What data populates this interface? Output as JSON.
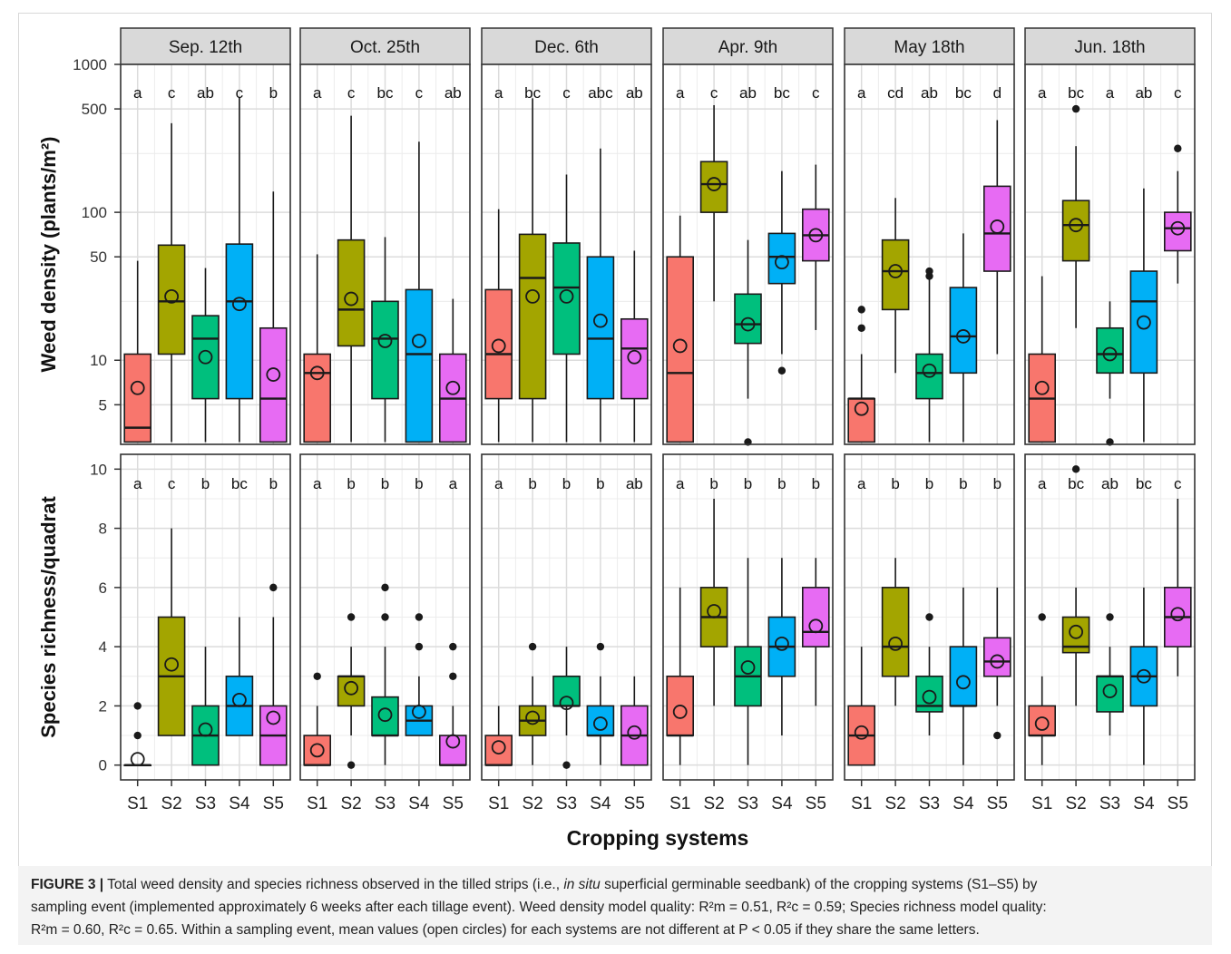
{
  "chart_data": {
    "type": "box",
    "xlabel": "Cropping systems",
    "systems": [
      "S1",
      "S2",
      "S3",
      "S4",
      "S5"
    ],
    "system_colors": [
      "#f8766d",
      "#a3a500",
      "#00bf7d",
      "#00b0f6",
      "#e76bf3"
    ],
    "events": [
      "Sep. 12th",
      "Oct. 25th",
      "Dec. 6th",
      "Apr. 9th",
      "May 18th",
      "Jun. 18th"
    ],
    "panels": [
      {
        "id": "density",
        "ylabel": "Weed density (plants/m²)",
        "scale": "log",
        "ylim": [
          2.7,
          1000
        ],
        "ticks": [
          5,
          10,
          50,
          100,
          500,
          1000
        ],
        "tick_labels": [
          "5",
          "10",
          "50",
          "100",
          "500",
          "1000"
        ],
        "minor_ticks": [
          25,
          250
        ],
        "facets": [
          {
            "letters": [
              "a",
              "c",
              "ab",
              "c",
              "b"
            ],
            "boxes": [
              {
                "lo": 2.8,
                "q1": 2.8,
                "med": 3.5,
                "q3": 11,
                "hi": 47,
                "mean": 6.5,
                "out": []
              },
              {
                "lo": 2.8,
                "q1": 11,
                "med": 25,
                "q3": 60,
                "hi": 400,
                "mean": 27,
                "out": []
              },
              {
                "lo": 2.8,
                "q1": 5.5,
                "med": 14,
                "q3": 20,
                "hi": 42,
                "mean": 10.5,
                "out": []
              },
              {
                "lo": 2.8,
                "q1": 5.5,
                "med": 25,
                "q3": 61,
                "hi": 600,
                "mean": 24,
                "out": []
              },
              {
                "lo": 2.8,
                "q1": 2.8,
                "med": 5.5,
                "q3": 16.5,
                "hi": 138,
                "mean": 8,
                "out": []
              }
            ]
          },
          {
            "letters": [
              "a",
              "c",
              "bc",
              "c",
              "ab"
            ],
            "boxes": [
              {
                "lo": 2.8,
                "q1": 2.8,
                "med": 8.2,
                "q3": 11,
                "hi": 52,
                "mean": 8.2,
                "out": []
              },
              {
                "lo": 2.8,
                "q1": 12.5,
                "med": 22,
                "q3": 65,
                "hi": 450,
                "mean": 26,
                "out": []
              },
              {
                "lo": 2.8,
                "q1": 5.5,
                "med": 14,
                "q3": 25,
                "hi": 68,
                "mean": 13.5,
                "out": []
              },
              {
                "lo": 2.8,
                "q1": 2.8,
                "med": 11,
                "q3": 30,
                "hi": 300,
                "mean": 13.5,
                "out": []
              },
              {
                "lo": 2.8,
                "q1": 2.8,
                "med": 5.5,
                "q3": 11,
                "hi": 26,
                "mean": 6.5,
                "out": []
              }
            ]
          },
          {
            "letters": [
              "a",
              "bc",
              "c",
              "abc",
              "ab"
            ],
            "boxes": [
              {
                "lo": 2.8,
                "q1": 5.5,
                "med": 11,
                "q3": 30,
                "hi": 105,
                "mean": 12.5,
                "out": []
              },
              {
                "lo": 2.8,
                "q1": 5.5,
                "med": 36,
                "q3": 71,
                "hi": 590,
                "mean": 27,
                "out": []
              },
              {
                "lo": 2.8,
                "q1": 11,
                "med": 31,
                "q3": 62,
                "hi": 180,
                "mean": 27,
                "out": []
              },
              {
                "lo": 2.8,
                "q1": 5.5,
                "med": 14,
                "q3": 50,
                "hi": 270,
                "mean": 18.5,
                "out": []
              },
              {
                "lo": 2.8,
                "q1": 5.5,
                "med": 12,
                "q3": 19,
                "hi": 55,
                "mean": 10.5,
                "out": []
              }
            ]
          },
          {
            "letters": [
              "a",
              "c",
              "ab",
              "bc",
              "c"
            ],
            "boxes": [
              {
                "lo": 2.8,
                "q1": 2.8,
                "med": 8.2,
                "q3": 50,
                "hi": 95,
                "mean": 12.5,
                "out": []
              },
              {
                "lo": 25,
                "q1": 100,
                "med": 155,
                "q3": 220,
                "hi": 530,
                "mean": 155,
                "out": []
              },
              {
                "lo": 5.5,
                "q1": 13,
                "med": 17.5,
                "q3": 28,
                "hi": 65,
                "mean": 17.5,
                "out": [
                  2.8
                ]
              },
              {
                "lo": 11,
                "q1": 33,
                "med": 50,
                "q3": 72,
                "hi": 190,
                "mean": 46,
                "out": [
                  8.5
                ]
              },
              {
                "lo": 16,
                "q1": 47,
                "med": 70,
                "q3": 105,
                "hi": 210,
                "mean": 70,
                "out": []
              }
            ]
          },
          {
            "letters": [
              "a",
              "cd",
              "ab",
              "bc",
              "d"
            ],
            "boxes": [
              {
                "lo": 2.8,
                "q1": 2.8,
                "med": 5.5,
                "q3": 5.5,
                "hi": 11,
                "mean": 4.7,
                "out": [
                  16.5,
                  22
                ]
              },
              {
                "lo": 8.2,
                "q1": 22,
                "med": 40,
                "q3": 65,
                "hi": 125,
                "mean": 40,
                "out": []
              },
              {
                "lo": 2.8,
                "q1": 5.5,
                "med": 8.2,
                "q3": 11,
                "hi": 35,
                "mean": 8.5,
                "out": [
                  37,
                  40
                ]
              },
              {
                "lo": 2.8,
                "q1": 8.2,
                "med": 14.5,
                "q3": 31,
                "hi": 72,
                "mean": 14.5,
                "out": []
              },
              {
                "lo": 11,
                "q1": 40,
                "med": 72,
                "q3": 150,
                "hi": 420,
                "mean": 80,
                "out": []
              }
            ]
          },
          {
            "letters": [
              "a",
              "bc",
              "a",
              "ab",
              "c"
            ],
            "boxes": [
              {
                "lo": 2.8,
                "q1": 2.8,
                "med": 5.5,
                "q3": 11,
                "hi": 37,
                "mean": 6.5,
                "out": []
              },
              {
                "lo": 16.5,
                "q1": 47,
                "med": 82,
                "q3": 120,
                "hi": 280,
                "mean": 82,
                "out": [
                  500
                ]
              },
              {
                "lo": 5.5,
                "q1": 8.2,
                "med": 11,
                "q3": 16.5,
                "hi": 25,
                "mean": 11,
                "out": [
                  2.8
                ]
              },
              {
                "lo": 2.8,
                "q1": 8.2,
                "med": 25,
                "q3": 40,
                "hi": 145,
                "mean": 18,
                "out": []
              },
              {
                "lo": 33,
                "q1": 55,
                "med": 78,
                "q3": 100,
                "hi": 190,
                "mean": 78,
                "out": [
                  270
                ]
              }
            ]
          }
        ]
      },
      {
        "id": "richness",
        "ylabel": "Species richness/quadrat",
        "scale": "linear",
        "ylim": [
          -0.5,
          10.5
        ],
        "ticks": [
          0,
          2,
          4,
          6,
          8,
          10
        ],
        "tick_labels": [
          "0",
          "2",
          "4",
          "6",
          "8",
          "10"
        ],
        "minor_ticks": [
          1,
          3,
          5,
          7,
          9
        ],
        "facets": [
          {
            "letters": [
              "a",
              "c",
              "b",
              "bc",
              "b"
            ],
            "boxes": [
              {
                "lo": 0,
                "q1": 0,
                "med": 0,
                "q3": 0,
                "hi": 0,
                "mean": 0.2,
                "out": [
                  1,
                  2
                ]
              },
              {
                "lo": 1,
                "q1": 1,
                "med": 3,
                "q3": 5,
                "hi": 8,
                "mean": 3.4,
                "out": []
              },
              {
                "lo": 0,
                "q1": 0,
                "med": 1,
                "q3": 2,
                "hi": 4,
                "mean": 1.2,
                "out": []
              },
              {
                "lo": 1,
                "q1": 1,
                "med": 2,
                "q3": 3,
                "hi": 5,
                "mean": 2.2,
                "out": []
              },
              {
                "lo": 0,
                "q1": 0,
                "med": 1,
                "q3": 2,
                "hi": 5,
                "mean": 1.6,
                "out": [
                  6
                ]
              }
            ]
          },
          {
            "letters": [
              "a",
              "b",
              "b",
              "b",
              "a"
            ],
            "boxes": [
              {
                "lo": 0,
                "q1": 0,
                "med": 0,
                "q3": 1,
                "hi": 2,
                "mean": 0.5,
                "out": [
                  3
                ]
              },
              {
                "lo": 1,
                "q1": 2,
                "med": 3,
                "q3": 3,
                "hi": 4,
                "mean": 2.6,
                "out": [
                  0,
                  5
                ]
              },
              {
                "lo": 0,
                "q1": 1,
                "med": 1,
                "q3": 2.3,
                "hi": 4,
                "mean": 1.7,
                "out": [
                  5,
                  6
                ]
              },
              {
                "lo": 1,
                "q1": 1,
                "med": 1.5,
                "q3": 2,
                "hi": 3,
                "mean": 1.8,
                "out": [
                  4,
                  5
                ]
              },
              {
                "lo": 0,
                "q1": 0,
                "med": 0,
                "q3": 1,
                "hi": 2,
                "mean": 0.8,
                "out": [
                  3,
                  4
                ]
              }
            ]
          },
          {
            "letters": [
              "a",
              "b",
              "b",
              "b",
              "ab"
            ],
            "boxes": [
              {
                "lo": 0,
                "q1": 0,
                "med": 0,
                "q3": 1,
                "hi": 2,
                "mean": 0.6,
                "out": []
              },
              {
                "lo": 0,
                "q1": 1,
                "med": 1.5,
                "q3": 2,
                "hi": 3,
                "mean": 1.6,
                "out": [
                  4
                ]
              },
              {
                "lo": 1,
                "q1": 2,
                "med": 2,
                "q3": 3,
                "hi": 4,
                "mean": 2.1,
                "out": [
                  0
                ]
              },
              {
                "lo": 0,
                "q1": 1,
                "med": 1,
                "q3": 2,
                "hi": 3,
                "mean": 1.4,
                "out": [
                  4
                ]
              },
              {
                "lo": 0,
                "q1": 0,
                "med": 1,
                "q3": 2,
                "hi": 3,
                "mean": 1.1,
                "out": []
              }
            ]
          },
          {
            "letters": [
              "a",
              "b",
              "b",
              "b",
              "b"
            ],
            "boxes": [
              {
                "lo": 0,
                "q1": 1,
                "med": 1,
                "q3": 3,
                "hi": 6,
                "mean": 1.8,
                "out": []
              },
              {
                "lo": 2,
                "q1": 4,
                "med": 5,
                "q3": 6,
                "hi": 9,
                "mean": 5.2,
                "out": []
              },
              {
                "lo": 0,
                "q1": 2,
                "med": 3,
                "q3": 4,
                "hi": 7,
                "mean": 3.3,
                "out": []
              },
              {
                "lo": 1,
                "q1": 3,
                "med": 4,
                "q3": 5,
                "hi": 7,
                "mean": 4.1,
                "out": []
              },
              {
                "lo": 2,
                "q1": 4,
                "med": 4.5,
                "q3": 6,
                "hi": 7,
                "mean": 4.7,
                "out": []
              }
            ]
          },
          {
            "letters": [
              "a",
              "b",
              "b",
              "b",
              "b"
            ],
            "boxes": [
              {
                "lo": 0,
                "q1": 0,
                "med": 1,
                "q3": 2,
                "hi": 4,
                "mean": 1.1,
                "out": []
              },
              {
                "lo": 2,
                "q1": 3,
                "med": 4,
                "q3": 6,
                "hi": 7,
                "mean": 4.1,
                "out": []
              },
              {
                "lo": 1,
                "q1": 1.8,
                "med": 2,
                "q3": 3,
                "hi": 4,
                "mean": 2.3,
                "out": [
                  5
                ]
              },
              {
                "lo": 0,
                "q1": 2,
                "med": 2,
                "q3": 4,
                "hi": 6,
                "mean": 2.8,
                "out": []
              },
              {
                "lo": 2,
                "q1": 3,
                "med": 3.5,
                "q3": 4.3,
                "hi": 6,
                "mean": 3.5,
                "out": [
                  1
                ]
              }
            ]
          },
          {
            "letters": [
              "a",
              "bc",
              "ab",
              "bc",
              "c"
            ],
            "boxes": [
              {
                "lo": 0,
                "q1": 1,
                "med": 1,
                "q3": 2,
                "hi": 3,
                "mean": 1.4,
                "out": [
                  5
                ]
              },
              {
                "lo": 2,
                "q1": 3.8,
                "med": 4,
                "q3": 5,
                "hi": 6,
                "mean": 4.5,
                "out": [
                  10
                ]
              },
              {
                "lo": 1,
                "q1": 1.8,
                "med": 3,
                "q3": 3,
                "hi": 4,
                "mean": 2.5,
                "out": [
                  5
                ]
              },
              {
                "lo": 0,
                "q1": 2,
                "med": 3,
                "q3": 4,
                "hi": 6,
                "mean": 3,
                "out": []
              },
              {
                "lo": 3,
                "q1": 4,
                "med": 5,
                "q3": 6,
                "hi": 9,
                "mean": 5.1,
                "out": []
              }
            ]
          }
        ]
      }
    ]
  },
  "caption": {
    "label": "FIGURE 3 |",
    "line1_a": " Total weed density and species richness observed in the tilled strips (i.e., ",
    "line1_italic": "in situ",
    "line1_b": " superficial germinable seedbank) of the cropping systems (S1–S5) by",
    "line2": "sampling event (implemented approximately 6 weeks after each tillage event). Weed density model quality: R²m = 0.51, R²c = 0.59; Species richness model quality:",
    "line3": "R²m = 0.60, R²c = 0.65. Within a sampling event, mean values (open circles) for each systems are not different at P < 0.05 if they share the same letters."
  }
}
